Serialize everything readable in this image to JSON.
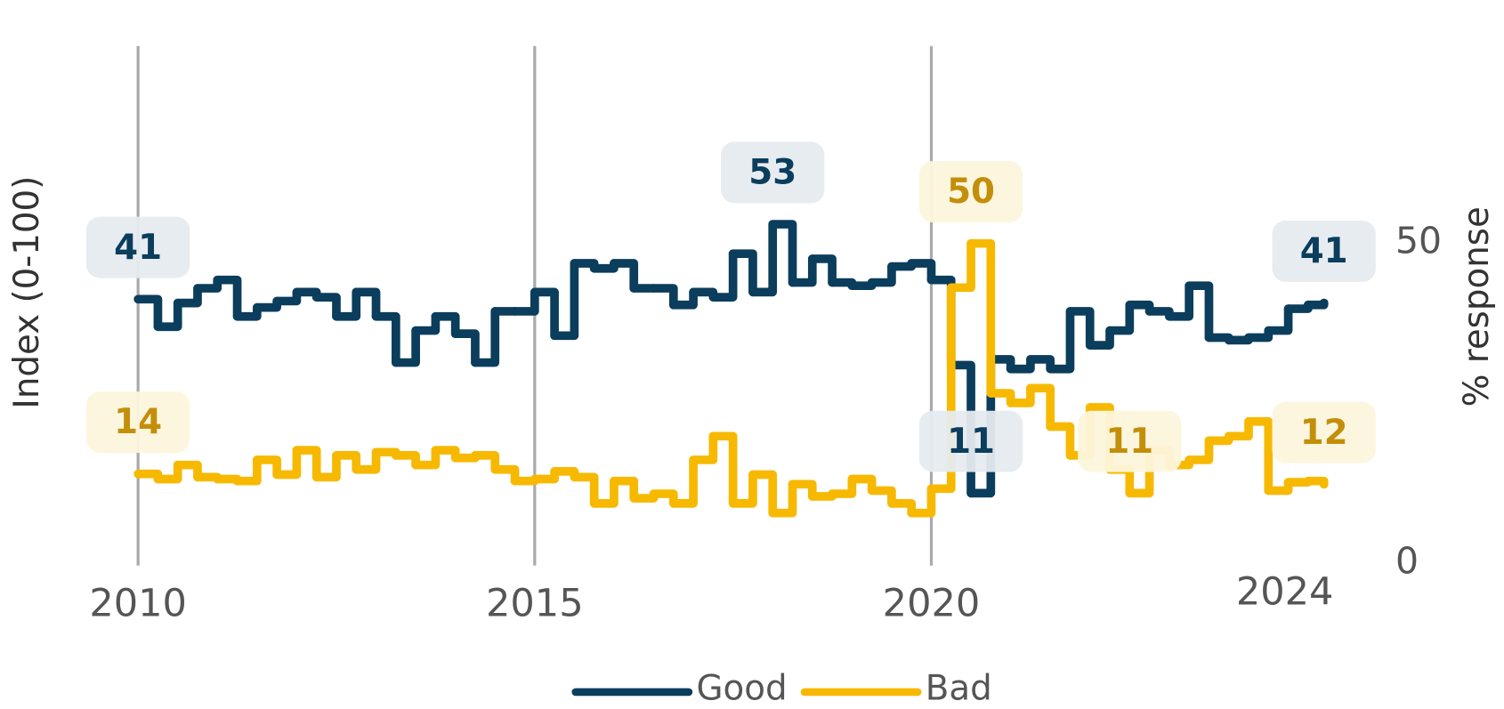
{
  "chart_data": {
    "type": "line",
    "step": true,
    "y_title": "Index (0-100)",
    "y2_title": "% response",
    "x_end_label": "2024",
    "xlim": [
      2009,
      2025.5
    ],
    "xticks": [
      2010,
      2015,
      2020
    ],
    "ylim": [
      0,
      80
    ],
    "yticks": [
      0,
      50
    ],
    "grid": true,
    "legend": "bottom",
    "x": [
      2010.0,
      2010.25,
      2010.5,
      2010.75,
      2011.0,
      2011.25,
      2011.5,
      2011.75,
      2012.0,
      2012.25,
      2012.5,
      2012.75,
      2013.0,
      2013.25,
      2013.5,
      2013.75,
      2014.0,
      2014.25,
      2014.5,
      2014.75,
      2015.0,
      2015.25,
      2015.5,
      2015.75,
      2016.0,
      2016.25,
      2016.5,
      2016.75,
      2017.0,
      2017.25,
      2017.5,
      2017.75,
      2018.0,
      2018.25,
      2018.5,
      2018.75,
      2019.0,
      2019.25,
      2019.5,
      2019.75,
      2020.0,
      2020.25,
      2020.5,
      2020.75,
      2021.0,
      2021.25,
      2021.5,
      2021.75,
      2022.0,
      2022.25,
      2022.5,
      2022.75,
      2023.0,
      2023.25,
      2023.5,
      2023.75,
      2024.0,
      2024.25,
      2024.5,
      2024.75,
      2024.95
    ],
    "series": [
      {
        "name": "Good",
        "color": "#0b3d5c",
        "label_bg": "#e6ebef",
        "values": [
          41.3,
          37,
          40.7,
          43,
          44.3,
          38.6,
          40,
          41,
          42.4,
          41.6,
          38.6,
          42.4,
          38.6,
          31.4,
          36.4,
          38.6,
          35.9,
          31.4,
          39.4,
          39.4,
          42.4,
          35.6,
          46.9,
          46.1,
          46.9,
          43,
          43,
          40.4,
          42.4,
          41.6,
          48.4,
          42.4,
          53,
          43.9,
          47.6,
          43.9,
          43.4,
          43.9,
          46.4,
          46.9,
          44.3,
          31,
          11,
          31.9,
          30.4,
          31.9,
          30.4,
          39.4,
          34.1,
          36.4,
          40.4,
          39.4,
          38.6,
          43.4,
          35.3,
          34.9,
          35.3,
          36.4,
          39.8,
          40.4,
          40.7
        ],
        "value_labels": [
          "41",
          null,
          null,
          null,
          null,
          null,
          null,
          null,
          null,
          null,
          null,
          null,
          null,
          null,
          null,
          null,
          null,
          null,
          null,
          null,
          null,
          null,
          null,
          null,
          null,
          null,
          null,
          null,
          null,
          null,
          null,
          null,
          "53",
          null,
          null,
          null,
          null,
          null,
          null,
          null,
          null,
          null,
          "11",
          null,
          null,
          null,
          null,
          null,
          null,
          null,
          null,
          null,
          null,
          null,
          null,
          null,
          null,
          null,
          null,
          null,
          "41"
        ]
      },
      {
        "name": "Bad",
        "color": "#f7b900",
        "label_color": "#c38f0a",
        "label_bg": "#fdf5dc",
        "values": [
          14,
          13.2,
          15.4,
          13.5,
          13.2,
          12.9,
          16.2,
          13.9,
          17.7,
          13.5,
          16.9,
          14.7,
          17.4,
          16.9,
          15.4,
          17.7,
          16.5,
          16.9,
          14.7,
          12.9,
          13.2,
          14.4,
          13.5,
          9.4,
          12.9,
          10.2,
          10.9,
          9.4,
          16.2,
          19.9,
          9.4,
          13.9,
          7.9,
          12.4,
          10.5,
          10.9,
          13.2,
          11.4,
          9.4,
          7.9,
          11.7,
          43.1,
          50,
          26.6,
          25.1,
          27.4,
          21.4,
          16.9,
          24.4,
          14.7,
          11,
          17.7,
          15.4,
          16.2,
          19.2,
          19.9,
          22.2,
          11.4,
          12.7,
          12.9,
          12.4
        ],
        "value_labels": [
          "14",
          null,
          null,
          null,
          null,
          null,
          null,
          null,
          null,
          null,
          null,
          null,
          null,
          null,
          null,
          null,
          null,
          null,
          null,
          null,
          null,
          null,
          null,
          null,
          null,
          null,
          null,
          null,
          null,
          null,
          null,
          null,
          null,
          null,
          null,
          null,
          null,
          null,
          null,
          null,
          null,
          null,
          "50",
          null,
          null,
          null,
          null,
          null,
          null,
          null,
          "11",
          null,
          null,
          null,
          null,
          null,
          null,
          null,
          null,
          null,
          "12"
        ]
      }
    ]
  }
}
